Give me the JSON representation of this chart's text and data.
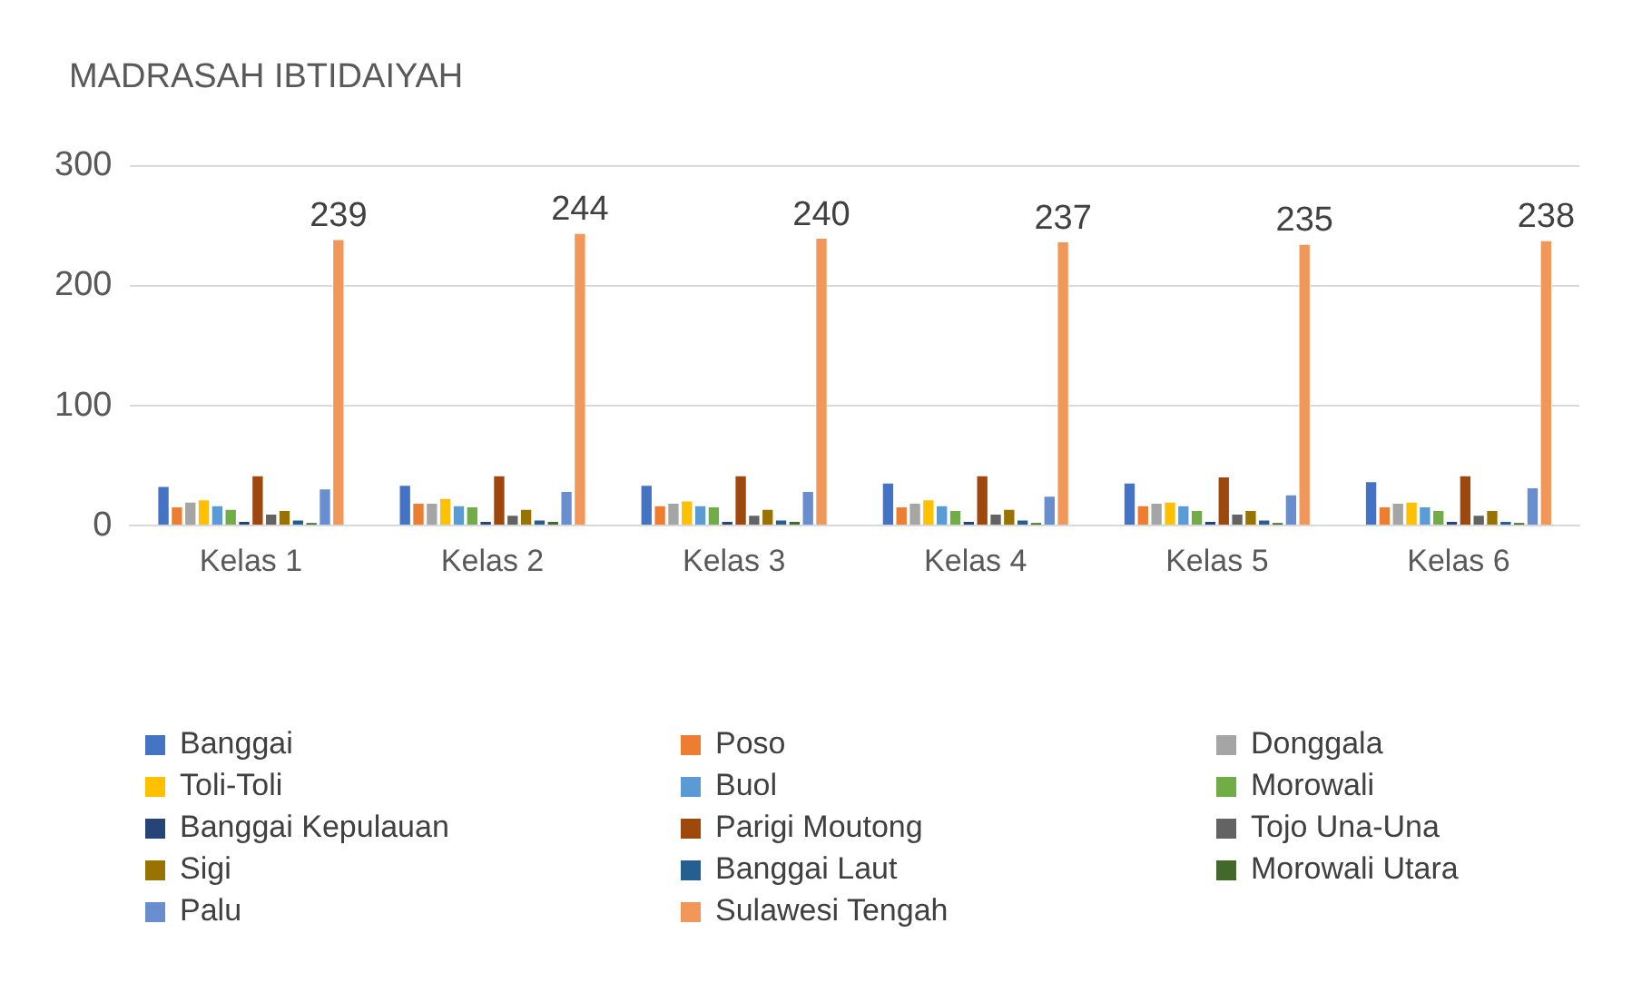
{
  "chart_data": {
    "type": "bar",
    "title": "MADRASAH IBTIDAIYAH",
    "categories": [
      "Kelas 1",
      "Kelas 2",
      "Kelas 3",
      "Kelas 4",
      "Kelas 5",
      "Kelas 6"
    ],
    "ylim": [
      0,
      300
    ],
    "yticks": [
      0,
      100,
      200,
      300
    ],
    "grid": "y",
    "legend": "bottom",
    "series": [
      {
        "name": "Banggai",
        "color": "#4472c4",
        "values": [
          33,
          34,
          34,
          36,
          36,
          37
        ]
      },
      {
        "name": "Poso",
        "color": "#ed7d31",
        "values": [
          16,
          19,
          17,
          16,
          17,
          16
        ]
      },
      {
        "name": "Donggala",
        "color": "#a5a5a5",
        "values": [
          20,
          19,
          19,
          19,
          19,
          19
        ]
      },
      {
        "name": "Toli-Toli",
        "color": "#ffc000",
        "values": [
          22,
          23,
          21,
          22,
          20,
          20
        ]
      },
      {
        "name": "Buol",
        "color": "#5b9bd5",
        "values": [
          17,
          17,
          17,
          17,
          17,
          16
        ]
      },
      {
        "name": "Morowali",
        "color": "#70ad47",
        "values": [
          14,
          16,
          16,
          13,
          13,
          13
        ]
      },
      {
        "name": "Banggai Kepulauan",
        "color": "#264478",
        "values": [
          4,
          4,
          4,
          4,
          4,
          4
        ]
      },
      {
        "name": "Parigi Moutong",
        "color": "#9e480e",
        "values": [
          42,
          42,
          42,
          42,
          41,
          42
        ]
      },
      {
        "name": "Tojo Una-Una",
        "color": "#636363",
        "values": [
          10,
          9,
          9,
          10,
          10,
          9
        ]
      },
      {
        "name": "Sigi",
        "color": "#997300",
        "values": [
          13,
          14,
          14,
          14,
          13,
          13
        ]
      },
      {
        "name": "Banggai Laut",
        "color": "#255e91",
        "values": [
          5,
          5,
          5,
          5,
          5,
          4
        ]
      },
      {
        "name": "Morowali Utara",
        "color": "#43682b",
        "values": [
          3,
          4,
          4,
          3,
          3,
          3
        ]
      },
      {
        "name": "Palu",
        "color": "#698ed0",
        "values": [
          31,
          29,
          29,
          25,
          26,
          32
        ]
      },
      {
        "name": "Sulawesi Tengah",
        "color": "#f1975a",
        "values": [
          239,
          244,
          240,
          237,
          235,
          238
        ],
        "value_labels": [
          "239",
          "244",
          "240",
          "237",
          "235",
          "238"
        ]
      }
    ]
  }
}
